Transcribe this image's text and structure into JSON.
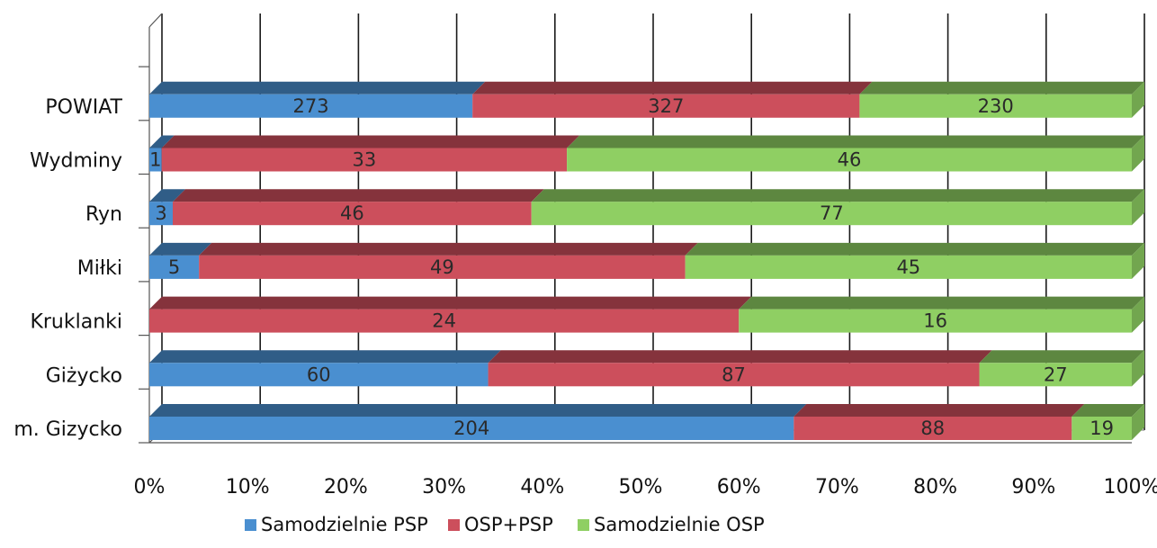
{
  "chart_data": {
    "type": "bar",
    "orientation": "horizontal",
    "stacking": "percent",
    "categories": [
      "m. Gizycko",
      "Giżycko",
      "Kruklanki",
      "Miłki",
      "Ryn",
      "Wydminy",
      "POWIAT"
    ],
    "series": [
      {
        "name": "Samodzielnie PSP",
        "color": "#4a8fd0",
        "values": [
          204,
          60,
          0,
          5,
          3,
          1,
          273
        ]
      },
      {
        "name": "OSP+PSP",
        "color": "#cc4f5c",
        "values": [
          88,
          87,
          24,
          49,
          46,
          33,
          327
        ]
      },
      {
        "name": "Samodzielnie OSP",
        "color": "#8fcf63",
        "values": [
          19,
          27,
          16,
          45,
          77,
          46,
          230
        ]
      }
    ],
    "xticks": [
      "0%",
      "10%",
      "20%",
      "30%",
      "40%",
      "50%",
      "60%",
      "70%",
      "80%",
      "90%",
      "100%"
    ],
    "xlim": [
      0,
      100
    ],
    "grid": true,
    "legend_position": "bottom"
  }
}
